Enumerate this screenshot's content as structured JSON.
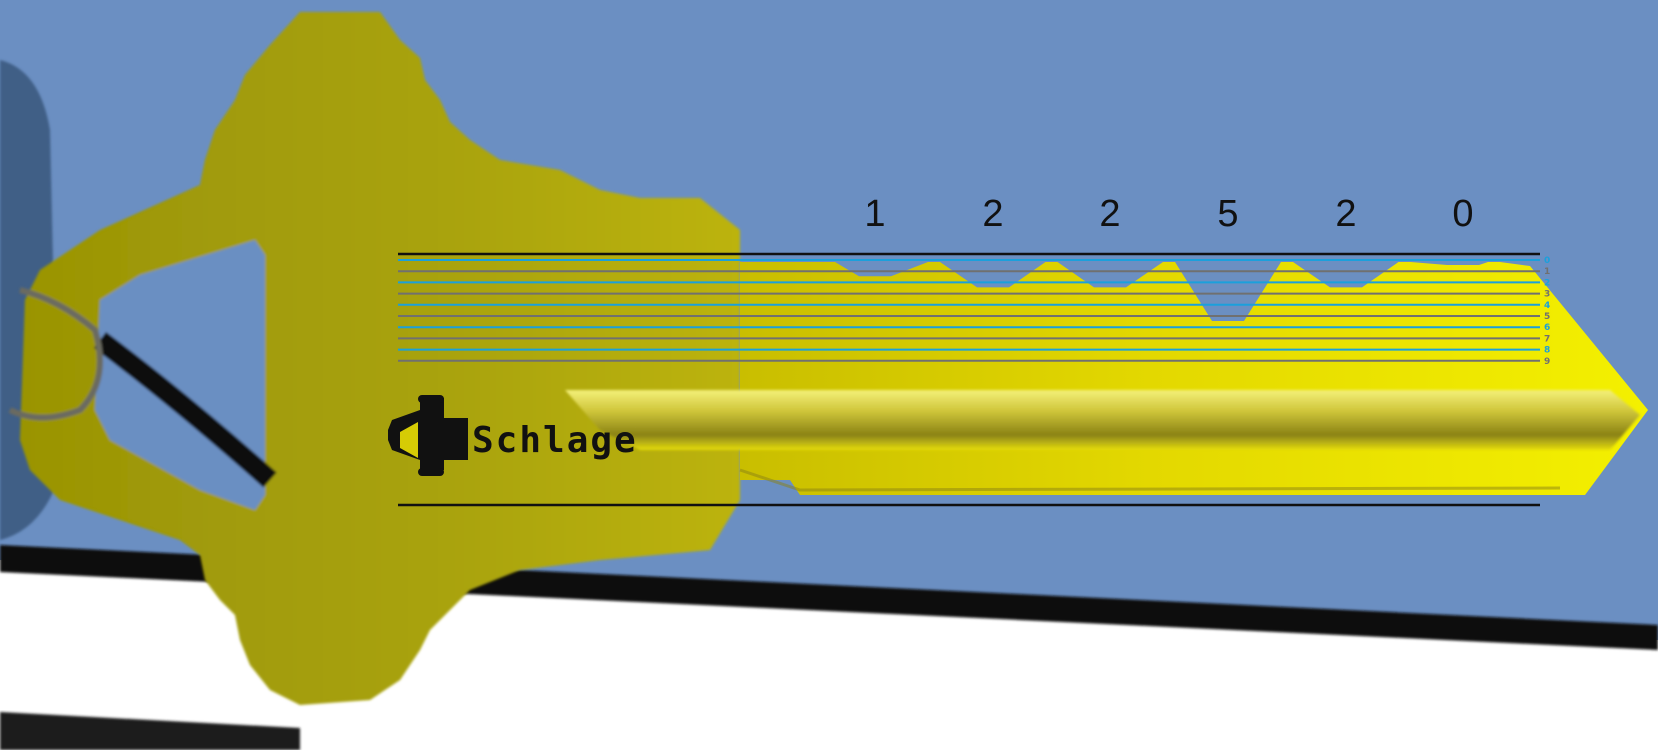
{
  "colors": {
    "background_blue": "#6b8fc2",
    "shadow_blue": "#3f5f86",
    "white_surface": "#ffffff",
    "bow_dark": "#9e9a08",
    "bow_light": "#c2b80a",
    "blade_yellow": "#f2ee00",
    "blade_highlight": "#f4f07a",
    "blade_shadow": "#7a7412",
    "line_black": "#111111",
    "line_blue": "#1aa0dc",
    "line_gray": "#707070",
    "cut_blue": "#2d97e8"
  },
  "brand": {
    "logo_icon": "schlage-keyhole-logo-icon",
    "name": "Schlage"
  },
  "bitting": {
    "code": [
      1,
      2,
      2,
      5,
      2,
      0
    ],
    "labels": [
      "1",
      "2",
      "2",
      "5",
      "2",
      "0"
    ]
  },
  "depth_scale": {
    "labels": [
      "0",
      "1",
      "2",
      "3",
      "4",
      "5",
      "6",
      "7",
      "8",
      "9"
    ],
    "line_colors": [
      "blue",
      "gray",
      "blue",
      "gray",
      "blue",
      "gray",
      "blue",
      "gray",
      "blue",
      "gray"
    ]
  }
}
